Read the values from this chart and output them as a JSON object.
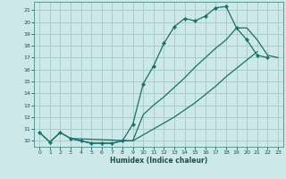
{
  "xlabel": "Humidex (Indice chaleur)",
  "xlim": [
    -0.5,
    23.5
  ],
  "ylim": [
    9.5,
    21.7
  ],
  "xticks": [
    0,
    1,
    2,
    3,
    4,
    5,
    6,
    7,
    8,
    9,
    10,
    11,
    12,
    13,
    14,
    15,
    16,
    17,
    18,
    19,
    20,
    21,
    22,
    23
  ],
  "yticks": [
    10,
    11,
    12,
    13,
    14,
    15,
    16,
    17,
    18,
    19,
    20,
    21
  ],
  "bg_color": "#cce8e8",
  "grid_color": "#aacccc",
  "line_color": "#1a7068",
  "line1_x": [
    0,
    1,
    2,
    3,
    4,
    5,
    6,
    7,
    8,
    9,
    10,
    11,
    12,
    13,
    14,
    15,
    16,
    17,
    18,
    19,
    20,
    21,
    22
  ],
  "line1_y": [
    10.7,
    9.9,
    10.7,
    10.2,
    10.0,
    9.8,
    9.8,
    9.8,
    10.0,
    11.4,
    14.8,
    16.3,
    18.2,
    19.6,
    20.3,
    20.1,
    20.5,
    21.2,
    21.3,
    19.5,
    18.5,
    17.2,
    17.0
  ],
  "line2_x": [
    0,
    1,
    2,
    3,
    4,
    5,
    6,
    7,
    8,
    9,
    10,
    11,
    12,
    13,
    14,
    15,
    16,
    17,
    18,
    19,
    20,
    21
  ],
  "line2_y": [
    10.7,
    9.9,
    10.7,
    10.2,
    10.0,
    9.8,
    9.8,
    9.8,
    10.0,
    10.0,
    10.5,
    11.0,
    11.5,
    12.0,
    12.6,
    13.2,
    13.9,
    14.6,
    15.4,
    16.1,
    16.8,
    17.5
  ],
  "line3_x": [
    3,
    9,
    10,
    11,
    12,
    13,
    14,
    15,
    16,
    17,
    18,
    19,
    20,
    21,
    22,
    23
  ],
  "line3_y": [
    10.2,
    10.0,
    12.2,
    13.0,
    13.7,
    14.5,
    15.3,
    16.2,
    17.0,
    17.8,
    18.5,
    19.5,
    19.5,
    18.5,
    17.2,
    17.0
  ]
}
